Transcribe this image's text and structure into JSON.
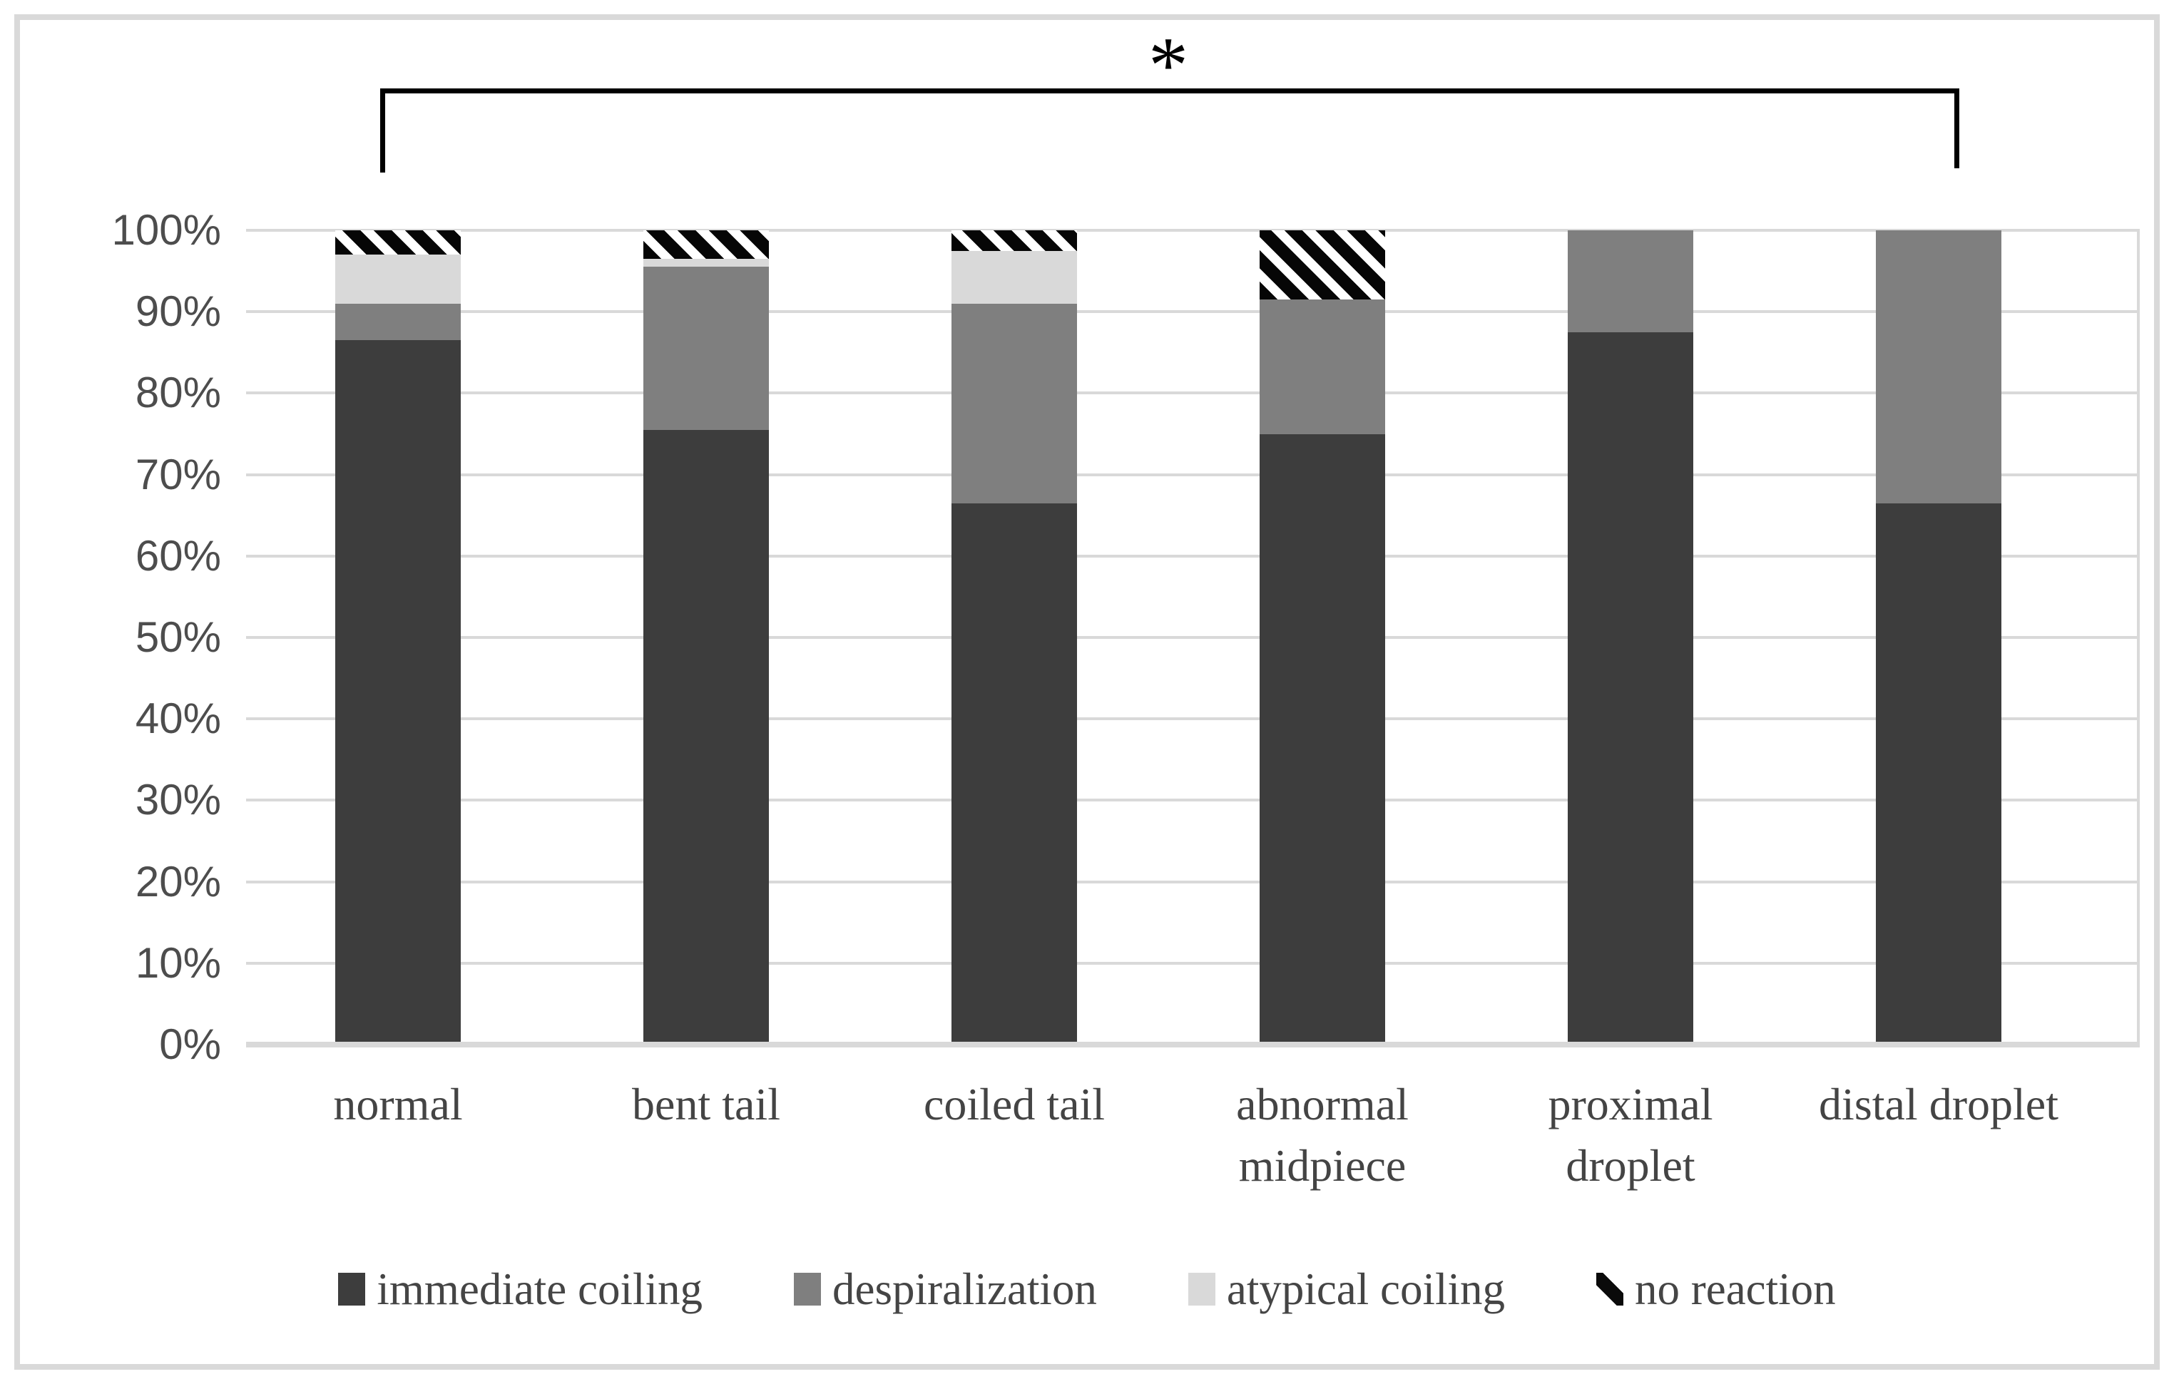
{
  "figure": {
    "background": "#ffffff",
    "border_color": "#d9d9d9"
  },
  "annotation": {
    "type": "significance-bracket",
    "label": "*",
    "from_category": "normal",
    "to_category": "distal droplet"
  },
  "chart_data": {
    "type": "bar",
    "stacked": true,
    "units": "percent",
    "title": "",
    "xlabel": "",
    "ylabel": "",
    "ylim": [
      0,
      100
    ],
    "grid": true,
    "legend_position": "bottom",
    "categories": [
      "normal",
      "bent tail",
      "coiled tail",
      "abnormal midpiece",
      "proximal droplet",
      "distal droplet"
    ],
    "category_label_lines": [
      [
        "normal"
      ],
      [
        "bent tail"
      ],
      [
        "coiled tail"
      ],
      [
        "abnormal",
        "midpiece"
      ],
      [
        "proximal",
        "droplet"
      ],
      [
        "distal droplet"
      ]
    ],
    "y_ticks": [
      "100%",
      "90%",
      "80%",
      "70%",
      "60%",
      "50%",
      "40%",
      "30%",
      "20%",
      "10%",
      "0%"
    ],
    "series": [
      {
        "name": "immediate coiling",
        "color": "#3d3d3d",
        "pattern": "solid",
        "values": [
          86.5,
          75.5,
          66.5,
          75.0,
          87.5,
          66.5
        ]
      },
      {
        "name": "despiralization",
        "color": "#7f7f7f",
        "pattern": "solid",
        "values": [
          4.5,
          20.0,
          24.5,
          16.5,
          12.5,
          33.5
        ]
      },
      {
        "name": "atypical coiling",
        "color": "#d9d9d9",
        "pattern": "solid",
        "values": [
          6.0,
          1.0,
          6.5,
          0.0,
          0.0,
          0.0
        ]
      },
      {
        "name": "no reaction",
        "color": "#000000",
        "pattern": "diagonal-stripes",
        "values": [
          3.0,
          3.5,
          2.5,
          8.5,
          0.0,
          0.0
        ]
      }
    ],
    "gridline_color": "#d9d9d9",
    "tick_text_color": "#4d4d4d"
  }
}
